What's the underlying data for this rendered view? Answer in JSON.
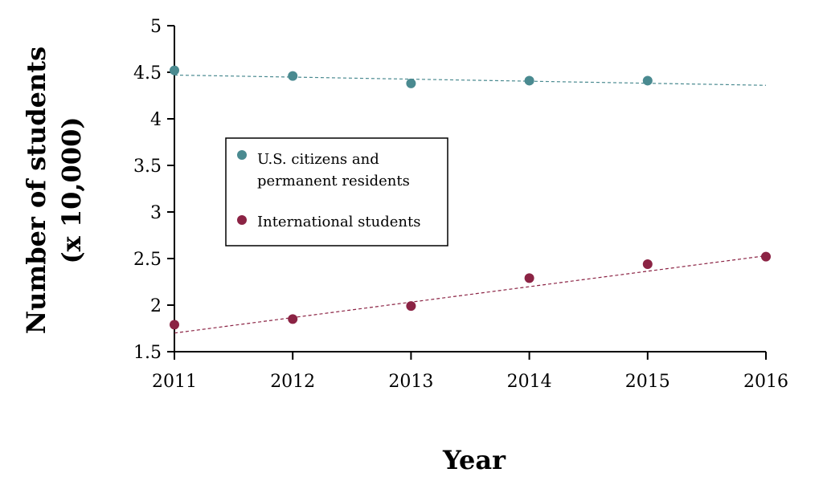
{
  "chart_data": {
    "type": "scatter",
    "title": "",
    "xlabel": "Year",
    "ylabel_line1": "Number of students",
    "ylabel_line2": "(x 10,000)",
    "xlim": [
      2011,
      2016
    ],
    "ylim": [
      1.5,
      5
    ],
    "x_ticks": [
      "2011",
      "2012",
      "2013",
      "2014",
      "2015",
      "2016"
    ],
    "y_ticks": [
      "1.5",
      "2",
      "2.5",
      "3",
      "3.5",
      "4",
      "4.5",
      "5"
    ],
    "grid": false,
    "legend_position": "center-left",
    "trendlines": true,
    "series": [
      {
        "name_line1": "U.S. citizens and",
        "name_line2": "permanent residents",
        "color": "#4a8a90",
        "x": [
          2011,
          2012,
          2013,
          2014,
          2015
        ],
        "y": [
          4.52,
          4.46,
          4.38,
          4.41,
          4.41
        ],
        "trend_start": [
          2011,
          4.47
        ],
        "trend_end": [
          2016,
          4.36
        ]
      },
      {
        "name_line1": "International students",
        "name_line2": "",
        "color": "#8b2344",
        "x": [
          2011,
          2012,
          2013,
          2014,
          2015,
          2016
        ],
        "y": [
          1.79,
          1.85,
          1.99,
          2.29,
          2.44,
          2.52
        ],
        "trend_start": [
          2011,
          1.7
        ],
        "trend_end": [
          2016,
          2.53
        ]
      }
    ]
  }
}
